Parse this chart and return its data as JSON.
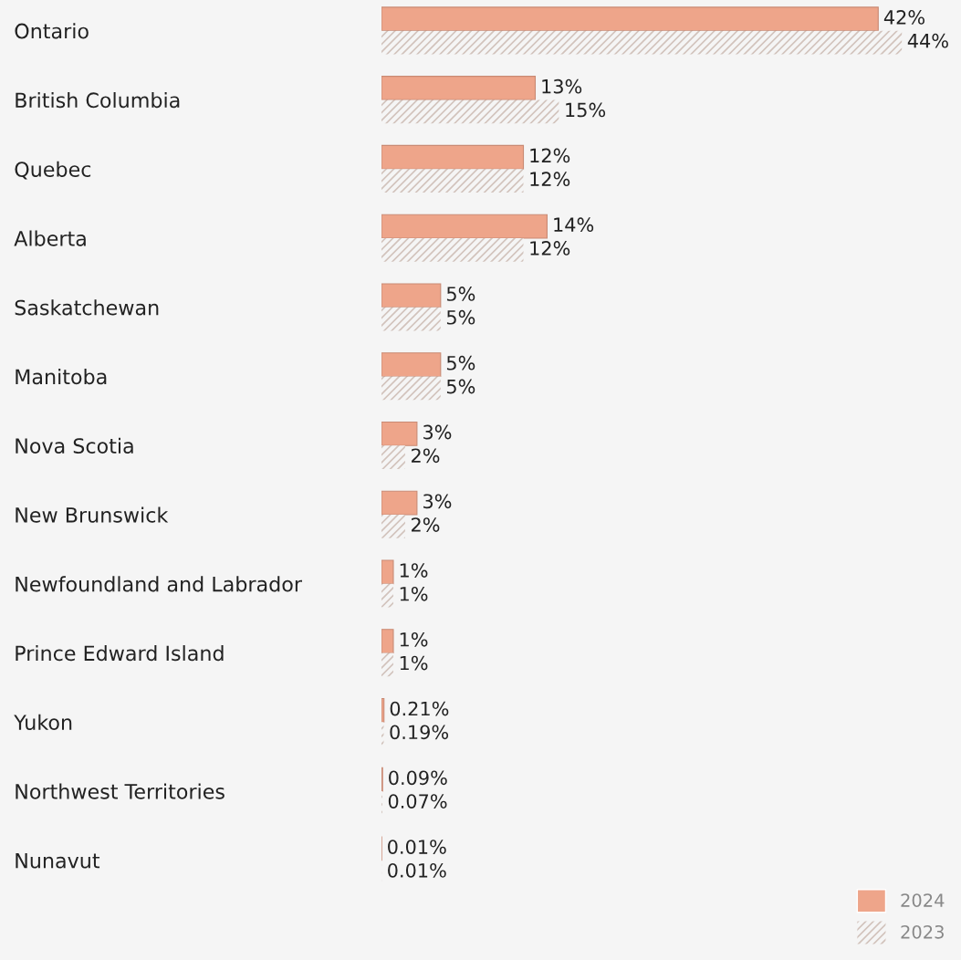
{
  "chart_data": {
    "type": "bar",
    "orientation": "horizontal",
    "categories": [
      "Ontario",
      "British Columbia",
      "Quebec",
      "Alberta",
      "Saskatchewan",
      "Manitoba",
      "Nova Scotia",
      "New Brunswick",
      "Newfoundland and Labrador",
      "Prince Edward Island",
      "Yukon",
      "Northwest Territories",
      "Nunavut"
    ],
    "series": [
      {
        "name": "2024",
        "color": "#eea58a",
        "values": [
          42,
          13,
          12,
          14,
          5,
          5,
          3,
          3,
          1,
          1,
          0.21,
          0.09,
          0.01
        ],
        "value_labels": [
          "42%",
          "13%",
          "12%",
          "14%",
          "5%",
          "5%",
          "3%",
          "3%",
          "1%",
          "1%",
          "0.21%",
          "0.09%",
          "0.01%"
        ]
      },
      {
        "name": "2023",
        "color": "#d2c3bc",
        "values": [
          44,
          15,
          12,
          12,
          5,
          5,
          2,
          2,
          1,
          1,
          0.19,
          0.07,
          0.01
        ],
        "value_labels": [
          "44%",
          "15%",
          "12%",
          "12%",
          "5%",
          "5%",
          "2%",
          "2%",
          "1%",
          "1%",
          "0.19%",
          "0.07%",
          "0.01%"
        ]
      }
    ],
    "xlim": [
      0,
      49
    ],
    "tick_labels": "y",
    "grid": false,
    "legend": "bottom right"
  }
}
